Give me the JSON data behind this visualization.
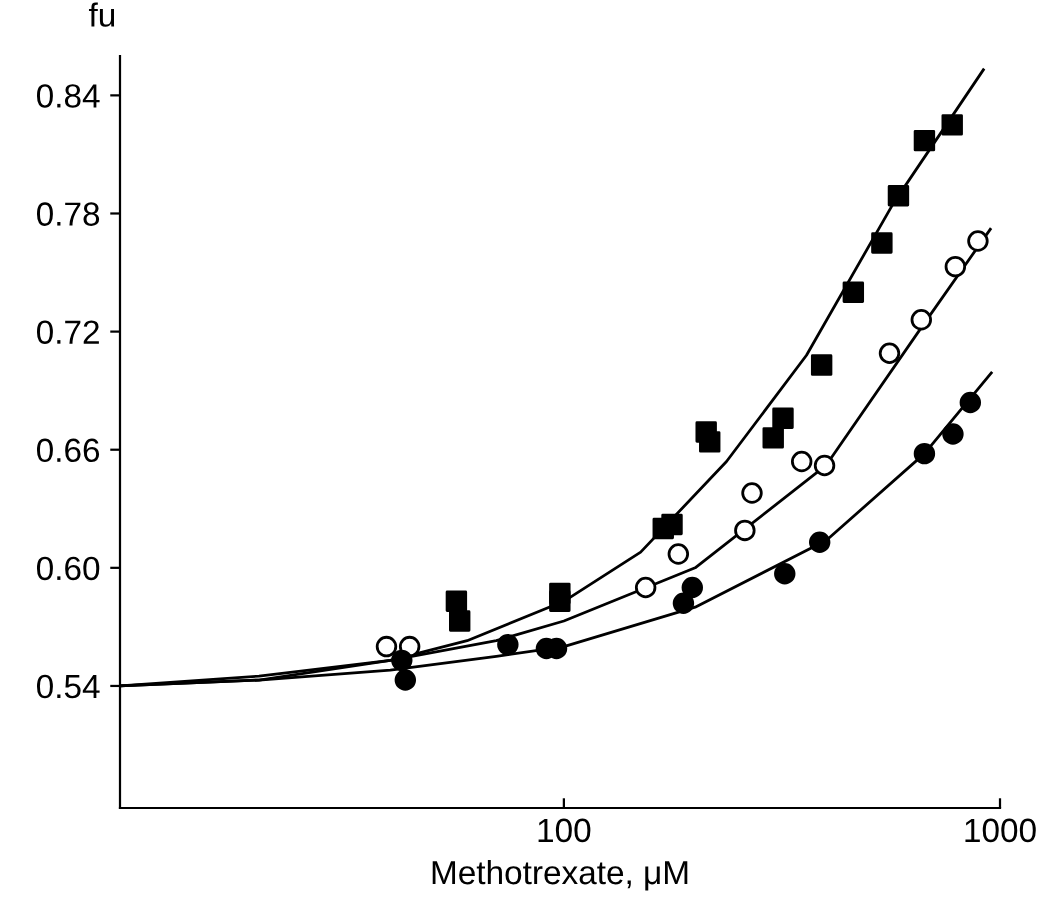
{
  "chart_data": {
    "type": "scatter",
    "xlabel": "Methotrexate, μM",
    "ylabel": "fu",
    "log": "x",
    "grid": false,
    "legend": false,
    "xlim": [
      9.6,
      1000
    ],
    "xticks": [
      100,
      1000
    ],
    "ylim": [
      0.478,
      0.86
    ],
    "yticks": [
      0.54,
      {
        "value": 0.6,
        "label": "0.60"
      },
      0.66,
      0.72,
      0.78,
      0.84
    ],
    "series": [
      {
        "marker": "square",
        "color": "#000000",
        "x": [
          56.7,
          57.7,
          97.9,
          97.9,
          169,
          177,
          212,
          216,
          302,
          318,
          390,
          461,
          536,
          585,
          671,
          777
        ],
        "values": [
          0.583,
          0.573,
          0.587,
          0.583,
          0.62,
          0.622,
          0.669,
          0.664,
          0.666,
          0.676,
          0.703,
          0.74,
          0.765,
          0.789,
          0.817,
          0.825
        ]
      },
      {
        "marker": "circle",
        "color": "#ffffff",
        "x": [
          39.2,
          44.3,
          154,
          183,
          260,
          270,
          351,
          396,
          558,
          660,
          790,
          890
        ],
        "values": [
          0.56,
          0.56,
          0.59,
          0.607,
          0.619,
          0.638,
          0.654,
          0.652,
          0.709,
          0.726,
          0.753,
          0.766
        ]
      },
      {
        "marker": "circle",
        "color": "#000000",
        "x": [
          42.5,
          43.3,
          74.4,
          91.2,
          96.2,
          188,
          197,
          321,
          386,
          671,
          780,
          855
        ],
        "values": [
          0.553,
          0.543,
          0.561,
          0.559,
          0.559,
          0.582,
          0.59,
          0.597,
          0.613,
          0.658,
          0.668,
          0.684
        ]
      },
      {
        "type": "line",
        "marker": "none",
        "line_style": "solid",
        "color": "#000000",
        "x": [
          9.6,
          20,
          40,
          60,
          100,
          150,
          236,
          360,
          569,
          916
        ],
        "values": [
          0.54,
          0.543,
          0.553,
          0.563,
          0.583,
          0.608,
          0.654,
          0.708,
          0.785,
          0.853
        ]
      },
      {
        "type": "line",
        "marker": "none",
        "line_style": "solid",
        "color": "#000000",
        "x": [
          9.6,
          20,
          40,
          70,
          100,
          200,
          399,
          660,
          950
        ],
        "values": [
          0.54,
          0.545,
          0.553,
          0.563,
          0.573,
          0.6,
          0.652,
          0.722,
          0.772
        ]
      },
      {
        "type": "line",
        "marker": "none",
        "line_style": "solid",
        "color": "#000000",
        "x": [
          9.6,
          20,
          40,
          70,
          100,
          200,
          400,
          671,
          955
        ],
        "values": [
          0.54,
          0.543,
          0.548,
          0.555,
          0.56,
          0.58,
          0.614,
          0.658,
          0.699
        ]
      }
    ]
  }
}
